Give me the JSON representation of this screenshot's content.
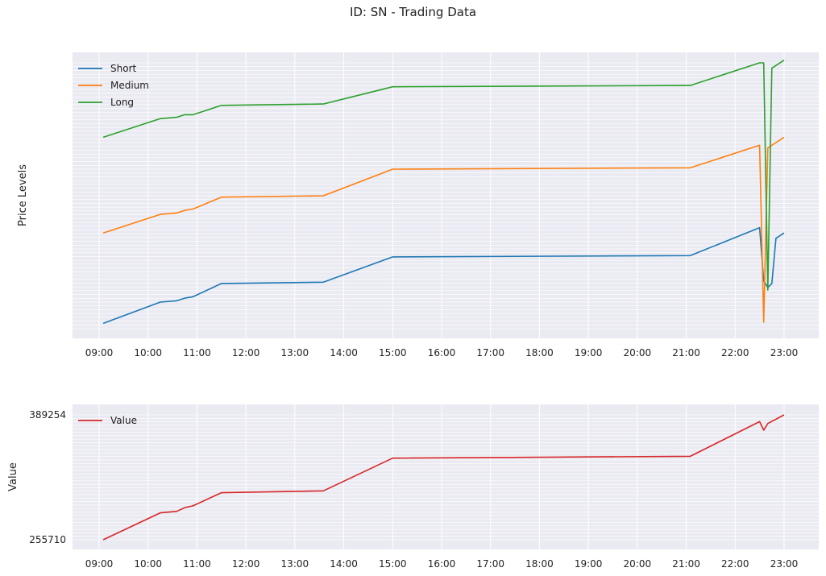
{
  "title": "ID: SN - Trading Data",
  "chart_data": [
    {
      "type": "line",
      "ylabel": "Price Levels",
      "xlabel": "",
      "x_ticks": [
        "09:00",
        "10:00",
        "11:00",
        "12:00",
        "13:00",
        "14:00",
        "15:00",
        "16:00",
        "17:00",
        "18:00",
        "19:00",
        "20:00",
        "21:00",
        "22:00",
        "23:00"
      ],
      "x": [
        "09:05",
        "10:15",
        "10:35",
        "10:45",
        "10:55",
        "11:30",
        "13:35",
        "15:00",
        "21:05",
        "22:30",
        "22:35",
        "22:40",
        "22:45",
        "22:50",
        "23:00"
      ],
      "ylim": [
        0,
        100
      ],
      "legend": "top-left",
      "grid": true,
      "series": [
        {
          "name": "Short",
          "color": "#1f77b4",
          "values": [
            2,
            10,
            10.5,
            11.5,
            12,
            17,
            17.5,
            27,
            27.5,
            38,
            18,
            15.5,
            17,
            34,
            36
          ]
        },
        {
          "name": "Medium",
          "color": "#ff7f0e",
          "values": [
            36,
            43,
            43.5,
            44.5,
            45,
            49.5,
            50,
            60,
            60.5,
            69,
            2.5,
            68,
            69,
            70,
            72
          ]
        },
        {
          "name": "Long",
          "color": "#2ca02c",
          "values": [
            72,
            79,
            79.5,
            80.5,
            80.5,
            84,
            84.5,
            91,
            91.5,
            100,
            100,
            14.5,
            98,
            99,
            101
          ]
        }
      ]
    },
    {
      "type": "line",
      "ylabel": "Value",
      "xlabel": "",
      "x_ticks": [
        "09:00",
        "10:00",
        "11:00",
        "12:00",
        "13:00",
        "14:00",
        "15:00",
        "16:00",
        "17:00",
        "18:00",
        "19:00",
        "20:00",
        "21:00",
        "22:00",
        "23:00"
      ],
      "x": [
        "09:05",
        "10:15",
        "10:35",
        "10:45",
        "10:55",
        "11:30",
        "13:35",
        "15:00",
        "21:05",
        "22:30",
        "22:35",
        "22:40",
        "23:00"
      ],
      "y_bottom_tick": "255710",
      "y_top_tick": "389254",
      "ylim": [
        255710,
        389254
      ],
      "legend": "top-left",
      "grid": true,
      "series": [
        {
          "name": "Value",
          "color": "#d62728",
          "values": [
            255710,
            284500,
            286000,
            290000,
            292000,
            306000,
            308000,
            343000,
            345000,
            382000,
            373000,
            380000,
            389254
          ]
        }
      ]
    }
  ]
}
